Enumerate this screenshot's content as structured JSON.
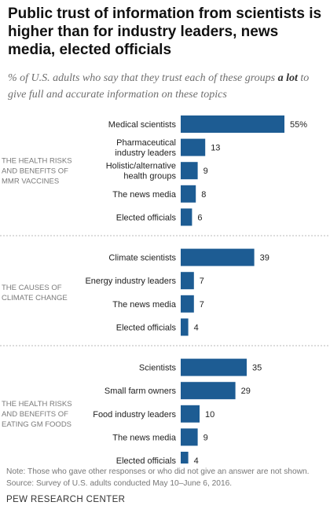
{
  "title": "Public trust of information from scientists is higher than for industry leaders, news media, elected officials",
  "subtitle": {
    "before": "% of U.S. adults who say that they trust each of these groups ",
    "emphasis": "a lot",
    "after": " to give full and accurate information on these topics"
  },
  "colors": {
    "bar": "#1d5c93",
    "separator": "#b8b8b8",
    "group_label": "#7a7a7a"
  },
  "chart_data": {
    "type": "bar",
    "orientation": "horizontal",
    "value_suffix_first": "%",
    "groups": [
      {
        "label": [
          "THE HEALTH RISKS",
          "AND BENEFITS OF",
          "MMR VACCINES"
        ],
        "categories": [
          [
            "Medical scientists"
          ],
          [
            "Pharmaceutical",
            "industry leaders"
          ],
          [
            "Holistic/alternative",
            "health groups"
          ],
          [
            "The news media"
          ],
          [
            "Elected officials"
          ]
        ],
        "values": [
          55,
          13,
          9,
          8,
          6
        ]
      },
      {
        "label": [
          "THE CAUSES OF",
          "CLIMATE CHANGE"
        ],
        "categories": [
          [
            "Climate scientists"
          ],
          [
            "Energy industry leaders"
          ],
          [
            "The news media"
          ],
          [
            "Elected officials"
          ]
        ],
        "values": [
          39,
          7,
          7,
          4
        ]
      },
      {
        "label": [
          "THE HEALTH RISKS",
          "AND BENEFITS OF",
          "EATING GM FOODS"
        ],
        "categories": [
          [
            "Scientists"
          ],
          [
            "Small farm owners"
          ],
          [
            "Food industry leaders"
          ],
          [
            "The news media"
          ],
          [
            "Elected officials"
          ]
        ],
        "values": [
          35,
          29,
          10,
          9,
          4
        ]
      }
    ]
  },
  "note": "Note: Those who gave other responses or who did not give an answer are not shown.",
  "source": "Source: Survey of U.S. adults conducted May 10–June 6, 2016.",
  "footer": "PEW RESEARCH CENTER"
}
